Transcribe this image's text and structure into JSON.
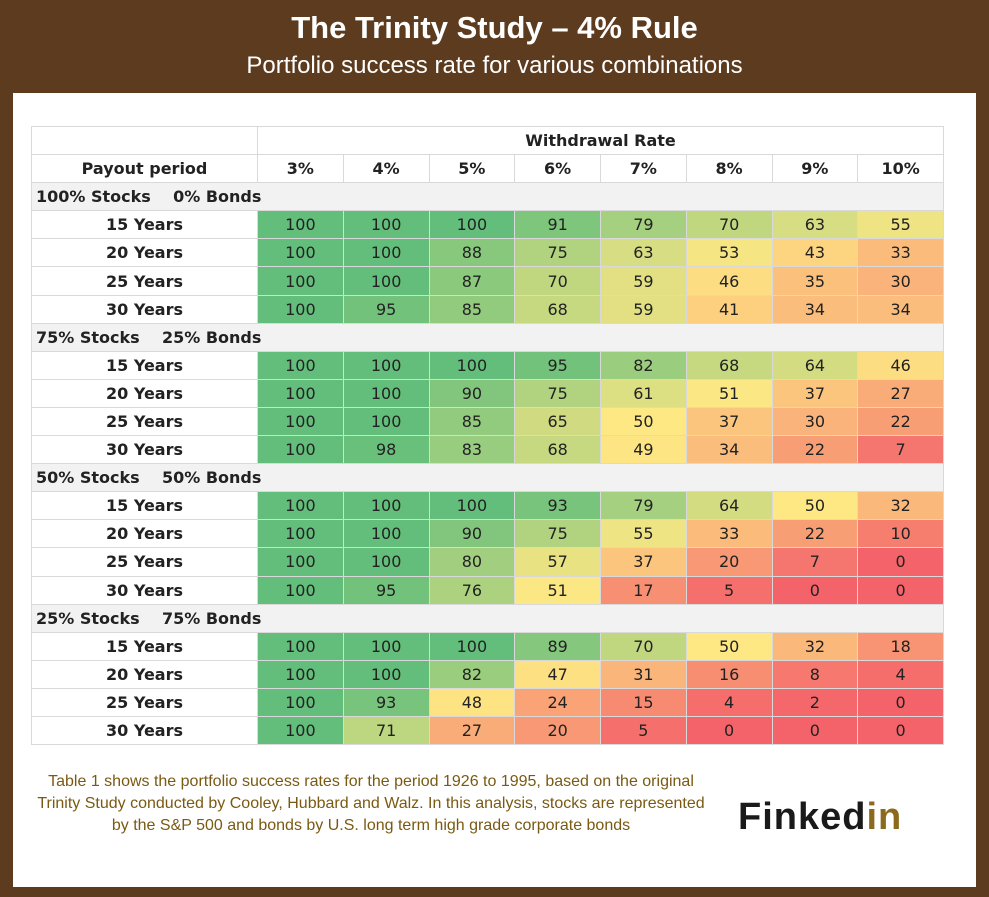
{
  "header": {
    "title": "The Trinity Study – 4% Rule",
    "subtitle": "Portfolio success rate for various combinations"
  },
  "chart_data": {
    "type": "table",
    "column_group_label": "Withdrawal Rate",
    "row_header_label": "Payout period",
    "columns": [
      "3%",
      "4%",
      "5%",
      "6%",
      "7%",
      "8%",
      "9%",
      "10%"
    ],
    "groups": [
      {
        "name": "100% Stocks    0% Bonds",
        "rows": [
          {
            "label": "15 Years",
            "values": [
              100,
              100,
              100,
              91,
              79,
              70,
              63,
              55
            ]
          },
          {
            "label": "20 Years",
            "values": [
              100,
              100,
              88,
              75,
              63,
              53,
              43,
              33
            ]
          },
          {
            "label": "25 Years",
            "values": [
              100,
              100,
              87,
              70,
              59,
              46,
              35,
              30
            ]
          },
          {
            "label": "30 Years",
            "values": [
              100,
              95,
              85,
              68,
              59,
              41,
              34,
              34
            ]
          }
        ]
      },
      {
        "name": "75% Stocks    25% Bonds",
        "rows": [
          {
            "label": "15 Years",
            "values": [
              100,
              100,
              100,
              95,
              82,
              68,
              64,
              46
            ]
          },
          {
            "label": "20 Years",
            "values": [
              100,
              100,
              90,
              75,
              61,
              51,
              37,
              27
            ]
          },
          {
            "label": "25 Years",
            "values": [
              100,
              100,
              85,
              65,
              50,
              37,
              30,
              22
            ]
          },
          {
            "label": "30 Years",
            "values": [
              100,
              98,
              83,
              68,
              49,
              34,
              22,
              7
            ]
          }
        ]
      },
      {
        "name": "50% Stocks    50% Bonds",
        "rows": [
          {
            "label": "15 Years",
            "values": [
              100,
              100,
              100,
              93,
              79,
              64,
              50,
              32
            ]
          },
          {
            "label": "20 Years",
            "values": [
              100,
              100,
              90,
              75,
              55,
              33,
              22,
              10
            ]
          },
          {
            "label": "25 Years",
            "values": [
              100,
              100,
              80,
              57,
              37,
              20,
              7,
              0
            ]
          },
          {
            "label": "30 Years",
            "values": [
              100,
              95,
              76,
              51,
              17,
              5,
              0,
              0
            ]
          }
        ]
      },
      {
        "name": "25% Stocks    75% Bonds",
        "rows": [
          {
            "label": "15 Years",
            "values": [
              100,
              100,
              100,
              89,
              70,
              50,
              32,
              18
            ]
          },
          {
            "label": "20 Years",
            "values": [
              100,
              100,
              82,
              47,
              31,
              16,
              8,
              4
            ]
          },
          {
            "label": "25 Years",
            "values": [
              100,
              93,
              48,
              24,
              15,
              4,
              2,
              0
            ]
          },
          {
            "label": "30 Years",
            "values": [
              100,
              71,
              27,
              20,
              5,
              0,
              0,
              0
            ]
          }
        ]
      }
    ],
    "color_scale": {
      "low": "#f4636a",
      "mid": "#fee884",
      "high": "#63be7b"
    }
  },
  "footnote": "Table 1 shows the portfolio success rates for the period 1926 to 1995, based on the original Trinity Study conducted by Cooley, Hubbard  and Walz. In this analysis, stocks are represented by the S&P 500 and bonds by U.S. long term high grade corporate bonds",
  "logo": {
    "part1": "Finked",
    "part2": "in"
  }
}
